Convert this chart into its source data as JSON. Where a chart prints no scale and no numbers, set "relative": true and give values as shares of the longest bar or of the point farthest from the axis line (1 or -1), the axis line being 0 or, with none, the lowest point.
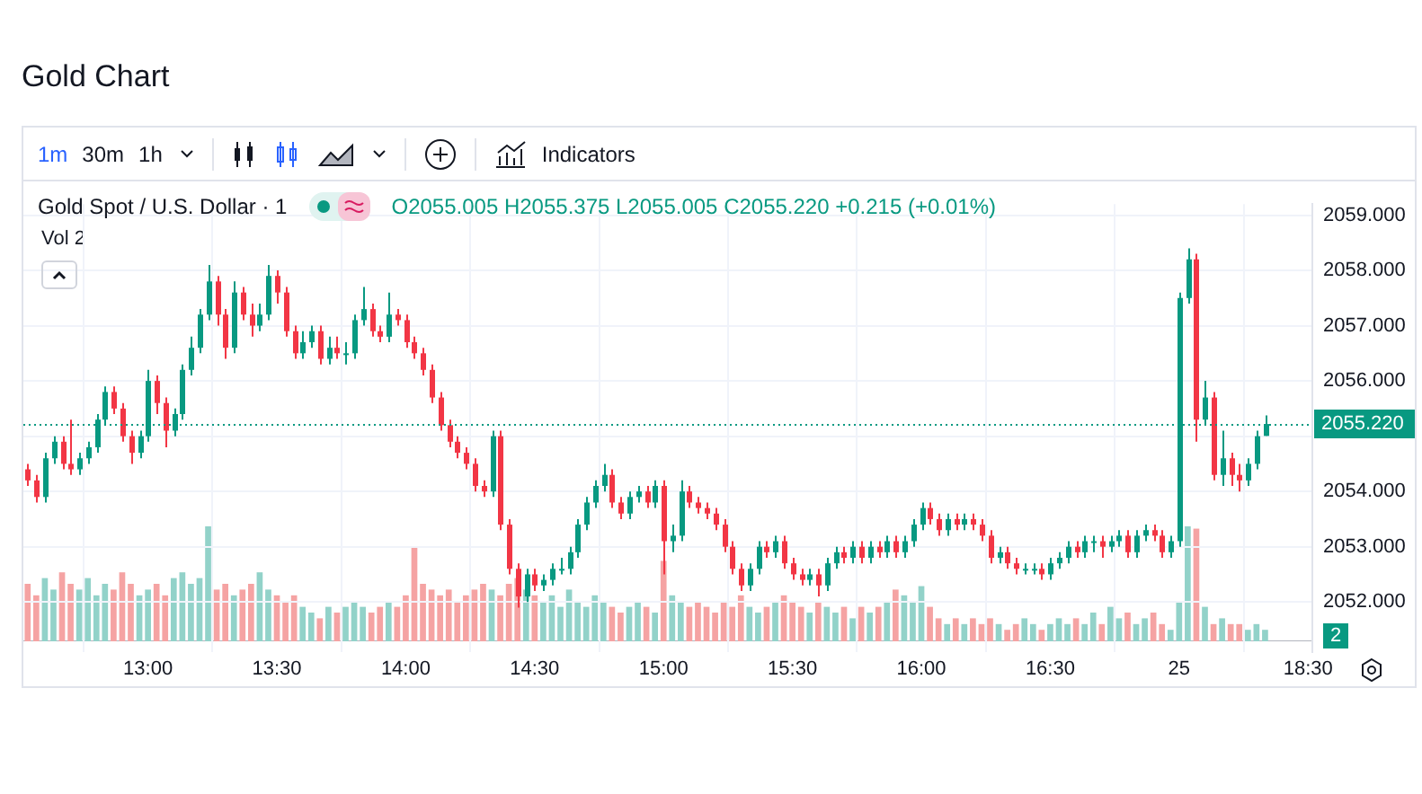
{
  "chart_data": [
    {
      "type": "candlestick",
      "title": "Gold Chart",
      "subtitle": "Gold Spot / U.S. Dollar · 1",
      "annotations": [
        "O2055.005 H2055.375 L2055.005 C2055.220 +0.215 (+0.01%)",
        "1m",
        "30m",
        "1h",
        "Indicators"
      ],
      "categories": [
        null,
        null,
        null,
        null,
        null,
        null,
        null,
        null,
        null,
        null,
        null,
        null,
        null,
        null,
        "13:00",
        null,
        null,
        null,
        null,
        null,
        null,
        null,
        null,
        null,
        null,
        null,
        null,
        null,
        null,
        "13:30",
        null,
        null,
        null,
        null,
        null,
        null,
        null,
        null,
        null,
        null,
        null,
        null,
        null,
        null,
        "14:00",
        null,
        null,
        null,
        null,
        null,
        null,
        null,
        null,
        null,
        null,
        null,
        null,
        null,
        null,
        "14:30",
        null,
        null,
        null,
        null,
        null,
        null,
        null,
        null,
        null,
        null,
        null,
        null,
        null,
        null,
        "15:00",
        null,
        null,
        null,
        null,
        null,
        null,
        null,
        null,
        null,
        null,
        null,
        null,
        null,
        null,
        "15:30",
        null,
        null,
        null,
        null,
        null,
        null,
        null,
        null,
        null,
        null,
        null,
        null,
        null,
        null,
        "16:00",
        null,
        null,
        null,
        null,
        null,
        null,
        null,
        null,
        null,
        null,
        null,
        null,
        null,
        null,
        "16:30",
        null,
        null,
        null,
        null,
        null,
        null,
        null,
        null,
        null,
        null,
        null,
        null,
        null,
        null,
        "25",
        null,
        null,
        null,
        null,
        null,
        null,
        null,
        null,
        null,
        null,
        null,
        null,
        null,
        null,
        "18:30"
      ],
      "ylim": [
        2051.1,
        2059.2
      ],
      "yticks": [
        {
          "value": 2052,
          "label": "2052.000"
        },
        {
          "value": 2053,
          "label": "2053.000"
        },
        {
          "value": 2054,
          "label": "2054.000"
        },
        {
          "value": 2055,
          "label": null
        },
        {
          "value": 2056,
          "label": "2056.000"
        },
        {
          "value": 2057,
          "label": "2057.000"
        },
        {
          "value": 2058,
          "label": "2058.000"
        },
        {
          "value": 2059,
          "label": "2059.000"
        }
      ],
      "grid": true,
      "ref_lines": [
        {
          "axis": "y",
          "value": 2055.22,
          "label": "2055.220",
          "color": "#089981",
          "line_style": "dotted"
        }
      ],
      "series": [
        {
          "ohlc": [
            [
              2054.4,
              2054.5,
              2054.1,
              2054.2
            ],
            [
              2054.2,
              2054.3,
              2053.8,
              2053.9
            ],
            [
              2053.9,
              2054.7,
              2053.8,
              2054.6
            ],
            [
              2054.6,
              2055.0,
              2054.5,
              2054.9
            ],
            [
              2054.9,
              2055.0,
              2054.4,
              2054.5
            ],
            [
              2054.5,
              2055.3,
              2054.3,
              2054.4
            ],
            [
              2054.4,
              2054.7,
              2054.3,
              2054.6
            ],
            [
              2054.6,
              2054.9,
              2054.5,
              2054.8
            ],
            [
              2054.8,
              2055.4,
              2054.7,
              2055.3
            ],
            [
              2055.3,
              2055.9,
              2055.2,
              2055.8
            ],
            [
              2055.8,
              2055.9,
              2055.4,
              2055.5
            ],
            [
              2055.5,
              2055.6,
              2054.9,
              2055.0
            ],
            [
              2055.0,
              2055.1,
              2054.5,
              2054.7
            ],
            [
              2054.7,
              2055.1,
              2054.6,
              2055.0
            ],
            [
              2055.0,
              2056.2,
              2054.9,
              2056.0
            ],
            [
              2056.0,
              2056.1,
              2055.4,
              2055.6
            ],
            [
              2055.6,
              2055.7,
              2054.8,
              2055.1
            ],
            [
              2055.1,
              2055.5,
              2055.0,
              2055.4
            ],
            [
              2055.4,
              2056.3,
              2055.3,
              2056.2
            ],
            [
              2056.2,
              2056.8,
              2056.1,
              2056.6
            ],
            [
              2056.6,
              2057.3,
              2056.5,
              2057.2
            ],
            [
              2057.2,
              2058.1,
              2057.1,
              2057.8
            ],
            [
              2057.8,
              2057.9,
              2057.0,
              2057.2
            ],
            [
              2057.2,
              2057.3,
              2056.4,
              2056.6
            ],
            [
              2056.6,
              2057.8,
              2056.5,
              2057.6
            ],
            [
              2057.6,
              2057.7,
              2057.1,
              2057.2
            ],
            [
              2057.2,
              2057.4,
              2056.8,
              2057.0
            ],
            [
              2057.0,
              2057.4,
              2056.9,
              2057.2
            ],
            [
              2057.2,
              2058.1,
              2057.1,
              2057.9
            ],
            [
              2057.9,
              2058.0,
              2057.4,
              2057.6
            ],
            [
              2057.6,
              2057.7,
              2056.8,
              2056.9
            ],
            [
              2056.9,
              2057.0,
              2056.4,
              2056.5
            ],
            [
              2056.5,
              2056.9,
              2056.4,
              2056.7
            ],
            [
              2056.7,
              2057.0,
              2056.6,
              2056.9
            ],
            [
              2056.9,
              2057.0,
              2056.3,
              2056.4
            ],
            [
              2056.4,
              2056.8,
              2056.3,
              2056.6
            ],
            [
              2056.6,
              2056.8,
              2056.4,
              2056.5
            ],
            [
              2056.5,
              2056.7,
              2056.3,
              2056.5
            ],
            [
              2056.5,
              2057.2,
              2056.4,
              2057.1
            ],
            [
              2057.1,
              2057.7,
              2057.0,
              2057.3
            ],
            [
              2057.3,
              2057.4,
              2056.8,
              2056.9
            ],
            [
              2056.9,
              2057.0,
              2056.7,
              2056.8
            ],
            [
              2056.8,
              2057.6,
              2056.7,
              2057.2
            ],
            [
              2057.2,
              2057.3,
              2057.0,
              2057.1
            ],
            [
              2057.1,
              2057.2,
              2056.6,
              2056.7
            ],
            [
              2056.7,
              2056.8,
              2056.4,
              2056.5
            ],
            [
              2056.5,
              2056.6,
              2056.1,
              2056.2
            ],
            [
              2056.2,
              2056.3,
              2055.6,
              2055.7
            ],
            [
              2055.7,
              2055.8,
              2055.1,
              2055.2
            ],
            [
              2055.2,
              2055.3,
              2054.8,
              2054.9
            ],
            [
              2054.9,
              2055.0,
              2054.6,
              2054.7
            ],
            [
              2054.7,
              2054.8,
              2054.4,
              2054.5
            ],
            [
              2054.5,
              2054.6,
              2054.0,
              2054.1
            ],
            [
              2054.1,
              2054.2,
              2053.9,
              2054.0
            ],
            [
              2054.0,
              2055.1,
              2053.9,
              2055.0
            ],
            [
              2055.0,
              2055.1,
              2053.3,
              2053.4
            ],
            [
              2053.4,
              2053.5,
              2052.5,
              2052.6
            ],
            [
              2052.6,
              2052.7,
              2051.9,
              2052.1
            ],
            [
              2052.1,
              2052.6,
              2052.0,
              2052.5
            ],
            [
              2052.5,
              2052.6,
              2052.2,
              2052.3
            ],
            [
              2052.3,
              2052.5,
              2052.2,
              2052.4
            ],
            [
              2052.4,
              2052.7,
              2052.3,
              2052.6
            ],
            [
              2052.6,
              2052.8,
              2052.5,
              2052.6
            ],
            [
              2052.6,
              2053.0,
              2052.5,
              2052.9
            ],
            [
              2052.9,
              2053.5,
              2052.8,
              2053.4
            ],
            [
              2053.4,
              2053.9,
              2053.3,
              2053.8
            ],
            [
              2053.8,
              2054.2,
              2053.7,
              2054.1
            ],
            [
              2054.1,
              2054.5,
              2054.0,
              2054.3
            ],
            [
              2054.3,
              2054.4,
              2053.7,
              2053.8
            ],
            [
              2053.8,
              2053.9,
              2053.5,
              2053.6
            ],
            [
              2053.6,
              2054.0,
              2053.5,
              2053.9
            ],
            [
              2053.9,
              2054.1,
              2053.8,
              2054.0
            ],
            [
              2054.0,
              2054.1,
              2053.7,
              2053.8
            ],
            [
              2053.8,
              2054.2,
              2053.7,
              2054.1
            ],
            [
              2054.1,
              2054.2,
              2052.5,
              2053.1
            ],
            [
              2053.1,
              2053.4,
              2052.9,
              2053.2
            ],
            [
              2053.2,
              2054.2,
              2053.1,
              2054.0
            ],
            [
              2054.0,
              2054.1,
              2053.7,
              2053.8
            ],
            [
              2053.8,
              2053.9,
              2053.6,
              2053.7
            ],
            [
              2053.7,
              2053.8,
              2053.5,
              2053.6
            ],
            [
              2053.6,
              2053.7,
              2053.3,
              2053.4
            ],
            [
              2053.4,
              2053.5,
              2052.9,
              2053.0
            ],
            [
              2053.0,
              2053.1,
              2052.5,
              2052.6
            ],
            [
              2052.6,
              2052.7,
              2052.2,
              2052.3
            ],
            [
              2052.3,
              2052.7,
              2052.2,
              2052.6
            ],
            [
              2052.6,
              2053.1,
              2052.5,
              2053.0
            ],
            [
              2053.0,
              2053.1,
              2052.8,
              2052.9
            ],
            [
              2052.9,
              2053.2,
              2052.8,
              2053.1
            ],
            [
              2053.1,
              2053.2,
              2052.6,
              2052.7
            ],
            [
              2052.7,
              2052.8,
              2052.4,
              2052.5
            ],
            [
              2052.5,
              2052.6,
              2052.3,
              2052.4
            ],
            [
              2052.4,
              2052.6,
              2052.3,
              2052.5
            ],
            [
              2052.5,
              2052.6,
              2052.1,
              2052.3
            ],
            [
              2052.3,
              2052.8,
              2052.2,
              2052.7
            ],
            [
              2052.7,
              2053.0,
              2052.6,
              2052.9
            ],
            [
              2052.9,
              2053.0,
              2052.7,
              2052.8
            ],
            [
              2052.8,
              2053.1,
              2052.7,
              2053.0
            ],
            [
              2053.0,
              2053.1,
              2052.7,
              2052.8
            ],
            [
              2052.8,
              2053.1,
              2052.7,
              2053.0
            ],
            [
              2053.0,
              2053.1,
              2052.8,
              2052.9
            ],
            [
              2052.9,
              2053.2,
              2052.8,
              2053.1
            ],
            [
              2053.1,
              2053.2,
              2052.8,
              2052.9
            ],
            [
              2052.9,
              2053.2,
              2052.8,
              2053.1
            ],
            [
              2053.1,
              2053.5,
              2053.0,
              2053.4
            ],
            [
              2053.4,
              2053.8,
              2053.3,
              2053.7
            ],
            [
              2053.7,
              2053.8,
              2053.4,
              2053.5
            ],
            [
              2053.5,
              2053.6,
              2053.2,
              2053.3
            ],
            [
              2053.3,
              2053.6,
              2053.2,
              2053.5
            ],
            [
              2053.5,
              2053.6,
              2053.3,
              2053.4
            ],
            [
              2053.4,
              2053.6,
              2053.3,
              2053.5
            ],
            [
              2053.5,
              2053.6,
              2053.3,
              2053.4
            ],
            [
              2053.4,
              2053.5,
              2053.1,
              2053.2
            ],
            [
              2053.2,
              2053.3,
              2052.7,
              2052.8
            ],
            [
              2052.8,
              2053.0,
              2052.7,
              2052.9
            ],
            [
              2052.9,
              2053.0,
              2052.6,
              2052.7
            ],
            [
              2052.7,
              2052.8,
              2052.5,
              2052.6
            ],
            [
              2052.6,
              2052.7,
              2052.5,
              2052.6
            ],
            [
              2052.6,
              2052.7,
              2052.5,
              2052.6
            ],
            [
              2052.6,
              2052.7,
              2052.4,
              2052.5
            ],
            [
              2052.5,
              2052.8,
              2052.4,
              2052.7
            ],
            [
              2052.7,
              2052.9,
              2052.6,
              2052.8
            ],
            [
              2052.8,
              2053.1,
              2052.7,
              2053.0
            ],
            [
              2053.0,
              2053.1,
              2052.8,
              2052.9
            ],
            [
              2052.9,
              2053.2,
              2052.8,
              2053.1
            ],
            [
              2053.1,
              2053.2,
              2052.9,
              2053.1
            ],
            [
              2053.1,
              2053.2,
              2052.8,
              2053.0
            ],
            [
              2053.0,
              2053.2,
              2052.9,
              2053.1
            ],
            [
              2053.1,
              2053.3,
              2053.0,
              2053.2
            ],
            [
              2053.2,
              2053.3,
              2052.8,
              2052.9
            ],
            [
              2052.9,
              2053.3,
              2052.8,
              2053.2
            ],
            [
              2053.2,
              2053.4,
              2053.1,
              2053.3
            ],
            [
              2053.3,
              2053.4,
              2053.1,
              2053.2
            ],
            [
              2053.2,
              2053.3,
              2052.8,
              2052.9
            ],
            [
              2052.9,
              2053.2,
              2052.8,
              2053.1
            ],
            [
              2053.1,
              2057.6,
              2053.0,
              2057.5
            ],
            [
              2057.5,
              2058.4,
              2057.4,
              2058.2
            ],
            [
              2058.2,
              2058.3,
              2054.9,
              2055.3
            ],
            [
              2055.3,
              2056.0,
              2055.2,
              2055.7
            ],
            [
              2055.7,
              2055.8,
              2054.2,
              2054.3
            ],
            [
              2054.3,
              2055.1,
              2054.1,
              2054.6
            ],
            [
              2054.6,
              2054.7,
              2054.1,
              2054.3
            ],
            [
              2054.3,
              2054.5,
              2054.0,
              2054.2
            ],
            [
              2054.2,
              2054.6,
              2054.1,
              2054.5
            ],
            [
              2054.5,
              2055.1,
              2054.4,
              2055.0
            ],
            [
              2055.005,
              2055.375,
              2055.005,
              2055.22
            ],
            null,
            null,
            null,
            null,
            null
          ],
          "colors": [
            "#f23645",
            "#f23645",
            "#089981",
            "#089981",
            "#f23645",
            "#f23645",
            "#089981",
            "#089981",
            "#089981",
            "#089981",
            "#f23645",
            "#f23645",
            "#f23645",
            "#089981",
            "#089981",
            "#f23645",
            "#f23645",
            "#089981",
            "#089981",
            "#089981",
            "#089981",
            "#089981",
            "#f23645",
            "#f23645",
            "#089981",
            "#f23645",
            "#f23645",
            "#089981",
            "#089981",
            "#f23645",
            "#f23645",
            "#f23645",
            "#089981",
            "#089981",
            "#f23645",
            "#089981",
            "#f23645",
            "#089981",
            "#089981",
            "#089981",
            "#f23645",
            "#f23645",
            "#089981",
            "#f23645",
            "#f23645",
            "#f23645",
            "#f23645",
            "#f23645",
            "#f23645",
            "#f23645",
            "#f23645",
            "#f23645",
            "#f23645",
            "#f23645",
            "#089981",
            "#f23645",
            "#f23645",
            "#f23645",
            "#089981",
            "#f23645",
            "#089981",
            "#089981",
            "#089981",
            "#089981",
            "#089981",
            "#089981",
            "#089981",
            "#089981",
            "#f23645",
            "#f23645",
            "#089981",
            "#089981",
            "#f23645",
            "#089981",
            "#f23645",
            "#089981",
            "#089981",
            "#f23645",
            "#f23645",
            "#f23645",
            "#f23645",
            "#f23645",
            "#f23645",
            "#f23645",
            "#089981",
            "#089981",
            "#f23645",
            "#089981",
            "#f23645",
            "#f23645",
            "#f23645",
            "#089981",
            "#f23645",
            "#089981",
            "#089981",
            "#f23645",
            "#089981",
            "#f23645",
            "#089981",
            "#f23645",
            "#089981",
            "#f23645",
            "#089981",
            "#089981",
            "#089981",
            "#f23645",
            "#f23645",
            "#089981",
            "#f23645",
            "#089981",
            "#f23645",
            "#f23645",
            "#f23645",
            "#089981",
            "#f23645",
            "#f23645",
            "#089981",
            "#089981",
            "#f23645",
            "#089981",
            "#089981",
            "#089981",
            "#f23645",
            "#089981",
            "#089981",
            "#f23645",
            "#089981",
            "#089981",
            "#f23645",
            "#089981",
            "#089981",
            "#f23645",
            "#f23645",
            "#089981",
            "#089981",
            "#089981",
            "#f23645",
            "#089981",
            "#f23645",
            "#089981",
            "#f23645",
            "#f23645",
            "#089981",
            "#089981",
            "#089981",
            null,
            null,
            null,
            null,
            null
          ]
        }
      ]
    },
    {
      "type": "bar",
      "relative": true,
      "annotations": [
        "Vol 2",
        "2"
      ],
      "categories": [
        null,
        null,
        null,
        null,
        null,
        null,
        null,
        null,
        null,
        null,
        null,
        null,
        null,
        null,
        null,
        null,
        null,
        null,
        null,
        null,
        null,
        null,
        null,
        null,
        null,
        null,
        null,
        null,
        null,
        null,
        null,
        null,
        null,
        null,
        null,
        null,
        null,
        null,
        null,
        null,
        null,
        null,
        null,
        null,
        null,
        null,
        null,
        null,
        null,
        null,
        null,
        null,
        null,
        null,
        null,
        null,
        null,
        null,
        null,
        null,
        null,
        null,
        null,
        null,
        null,
        null,
        null,
        null,
        null,
        null,
        null,
        null,
        null,
        null,
        null,
        null,
        null,
        null,
        null,
        null,
        null,
        null,
        null,
        null,
        null,
        null,
        null,
        null,
        null,
        null,
        null,
        null,
        null,
        null,
        null,
        null,
        null,
        null,
        null,
        null,
        null,
        null,
        null,
        null,
        null,
        null,
        null,
        null,
        null,
        null,
        null,
        null,
        null,
        null,
        null,
        null,
        null,
        null,
        null,
        null,
        null,
        null,
        null,
        null,
        null,
        null,
        null,
        null,
        null,
        null,
        null,
        null,
        null,
        null,
        null,
        null,
        null,
        null,
        null,
        null,
        null,
        null,
        null,
        null,
        null,
        null,
        null,
        null,
        null,
        null
      ],
      "series": [
        {
          "values": [
            0.5,
            0.4,
            0.55,
            0.45,
            0.6,
            0.5,
            0.45,
            0.55,
            0.4,
            0.5,
            0.45,
            0.6,
            0.5,
            0.4,
            0.45,
            0.5,
            0.4,
            0.55,
            0.6,
            0.5,
            0.55,
            1.0,
            0.45,
            0.5,
            0.4,
            0.45,
            0.5,
            0.6,
            0.45,
            0.4,
            0.35,
            0.4,
            0.3,
            0.25,
            0.2,
            0.3,
            0.25,
            0.3,
            0.35,
            0.3,
            0.25,
            0.3,
            0.35,
            0.3,
            0.4,
            0.82,
            0.5,
            0.45,
            0.4,
            0.45,
            0.35,
            0.4,
            0.45,
            0.5,
            0.45,
            0.4,
            0.5,
            0.55,
            0.45,
            0.4,
            0.35,
            0.4,
            0.3,
            0.45,
            0.35,
            0.3,
            0.4,
            0.35,
            0.3,
            0.25,
            0.3,
            0.35,
            0.3,
            0.25,
            0.7,
            0.4,
            0.35,
            0.3,
            0.35,
            0.3,
            0.25,
            0.35,
            0.3,
            0.4,
            0.3,
            0.25,
            0.3,
            0.35,
            0.4,
            0.35,
            0.3,
            0.25,
            0.35,
            0.3,
            0.25,
            0.3,
            0.2,
            0.3,
            0.25,
            0.3,
            0.35,
            0.45,
            0.4,
            0.35,
            0.48,
            0.3,
            0.2,
            0.15,
            0.2,
            0.15,
            0.2,
            0.15,
            0.2,
            0.15,
            0.1,
            0.15,
            0.2,
            0.15,
            0.1,
            0.15,
            0.2,
            0.15,
            0.2,
            0.15,
            0.25,
            0.15,
            0.3,
            0.2,
            0.25,
            0.15,
            0.2,
            0.25,
            0.15,
            0.1,
            0.35,
            1.0,
            0.98,
            0.3,
            0.15,
            0.2,
            0.15,
            0.15,
            0.1,
            0.15,
            0.1,
            null,
            null,
            null,
            null,
            null
          ],
          "colors": [
            "#f5a3a3",
            "#f5a3a3",
            "#92d2c9",
            "#92d2c9",
            "#f5a3a3",
            "#f5a3a3",
            "#92d2c9",
            "#92d2c9",
            "#92d2c9",
            "#92d2c9",
            "#f5a3a3",
            "#f5a3a3",
            "#f5a3a3",
            "#92d2c9",
            "#92d2c9",
            "#f5a3a3",
            "#f5a3a3",
            "#92d2c9",
            "#92d2c9",
            "#92d2c9",
            "#92d2c9",
            "#92d2c9",
            "#f5a3a3",
            "#f5a3a3",
            "#92d2c9",
            "#f5a3a3",
            "#f5a3a3",
            "#92d2c9",
            "#92d2c9",
            "#f5a3a3",
            "#f5a3a3",
            "#f5a3a3",
            "#92d2c9",
            "#92d2c9",
            "#f5a3a3",
            "#92d2c9",
            "#f5a3a3",
            "#92d2c9",
            "#92d2c9",
            "#92d2c9",
            "#f5a3a3",
            "#f5a3a3",
            "#92d2c9",
            "#f5a3a3",
            "#f5a3a3",
            "#f5a3a3",
            "#f5a3a3",
            "#f5a3a3",
            "#f5a3a3",
            "#f5a3a3",
            "#f5a3a3",
            "#f5a3a3",
            "#f5a3a3",
            "#f5a3a3",
            "#92d2c9",
            "#f5a3a3",
            "#f5a3a3",
            "#f5a3a3",
            "#92d2c9",
            "#f5a3a3",
            "#92d2c9",
            "#92d2c9",
            "#92d2c9",
            "#92d2c9",
            "#92d2c9",
            "#92d2c9",
            "#92d2c9",
            "#92d2c9",
            "#f5a3a3",
            "#f5a3a3",
            "#92d2c9",
            "#92d2c9",
            "#f5a3a3",
            "#92d2c9",
            "#f5a3a3",
            "#92d2c9",
            "#92d2c9",
            "#f5a3a3",
            "#f5a3a3",
            "#f5a3a3",
            "#f5a3a3",
            "#f5a3a3",
            "#f5a3a3",
            "#f5a3a3",
            "#92d2c9",
            "#92d2c9",
            "#f5a3a3",
            "#92d2c9",
            "#f5a3a3",
            "#f5a3a3",
            "#f5a3a3",
            "#92d2c9",
            "#f5a3a3",
            "#92d2c9",
            "#92d2c9",
            "#f5a3a3",
            "#92d2c9",
            "#f5a3a3",
            "#92d2c9",
            "#f5a3a3",
            "#92d2c9",
            "#f5a3a3",
            "#92d2c9",
            "#92d2c9",
            "#92d2c9",
            "#f5a3a3",
            "#f5a3a3",
            "#92d2c9",
            "#f5a3a3",
            "#92d2c9",
            "#f5a3a3",
            "#f5a3a3",
            "#f5a3a3",
            "#92d2c9",
            "#f5a3a3",
            "#f5a3a3",
            "#92d2c9",
            "#92d2c9",
            "#f5a3a3",
            "#92d2c9",
            "#92d2c9",
            "#92d2c9",
            "#f5a3a3",
            "#92d2c9",
            "#92d2c9",
            "#f5a3a3",
            "#92d2c9",
            "#92d2c9",
            "#f5a3a3",
            "#92d2c9",
            "#92d2c9",
            "#f5a3a3",
            "#f5a3a3",
            "#92d2c9",
            "#92d2c9",
            "#92d2c9",
            "#f5a3a3",
            "#92d2c9",
            "#f5a3a3",
            "#92d2c9",
            "#f5a3a3",
            "#f5a3a3",
            "#92d2c9",
            "#92d2c9",
            "#92d2c9",
            null,
            null,
            null,
            null,
            null
          ]
        }
      ]
    }
  ]
}
